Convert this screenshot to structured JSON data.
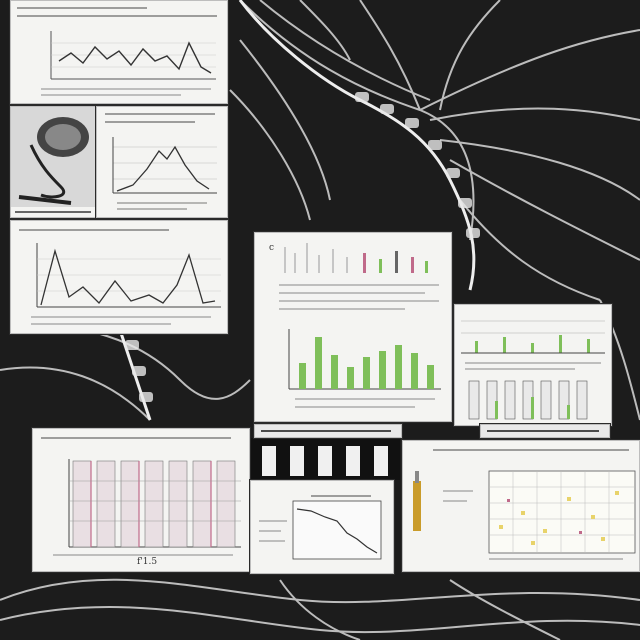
{
  "panel_a": {
    "footer": ""
  },
  "panel_d": {
    "letter": "c"
  },
  "panel_g": {
    "footer": "f'1.5"
  },
  "colors": {
    "background": "#1a1a1a",
    "paper": "#f4f4f2",
    "ink": "#2b2b2b",
    "accent_green": "#7fbf5a",
    "accent_pink": "#c06a8a",
    "accent_yellow": "#e8d36a",
    "accent_gold": "#c99b2a"
  }
}
